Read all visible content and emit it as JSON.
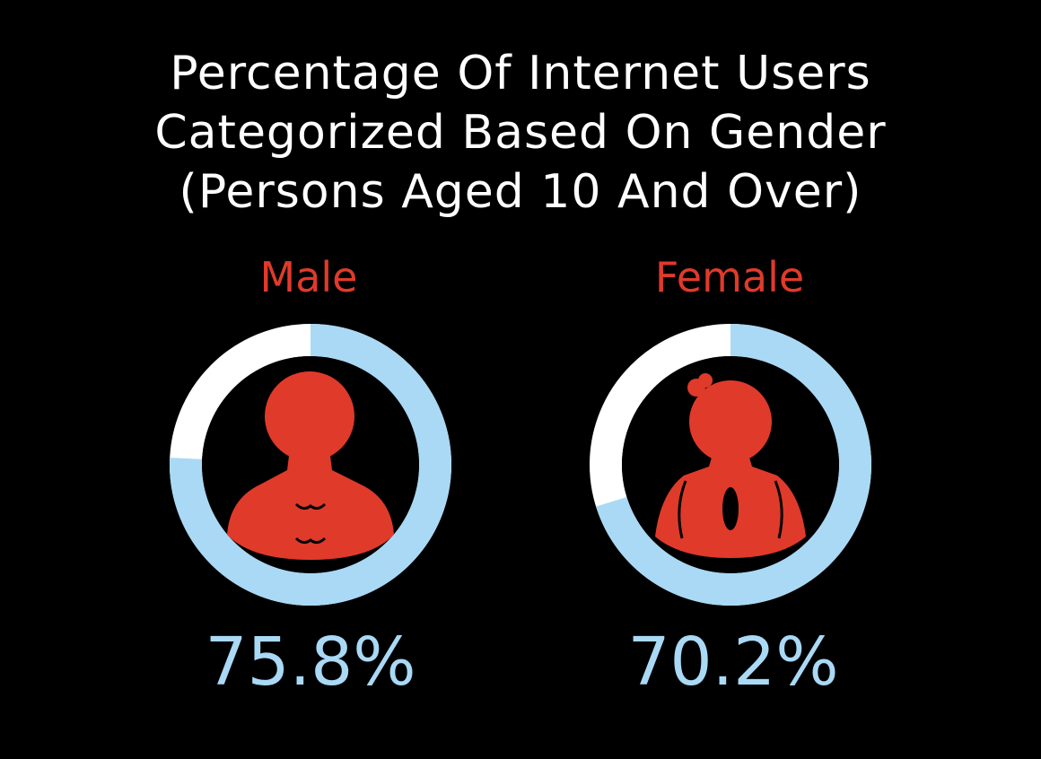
{
  "colors": {
    "background": "#000000",
    "title": "#ffffff",
    "accent_red": "#e03a2b",
    "ring_filled": "#a9d9f5",
    "ring_remainder": "#ffffff",
    "inner_circle": "#000000"
  },
  "chart_data": [
    {
      "type": "pie",
      "variant": "donut",
      "title": "Percentage Of Internet Users Categorized Based On Gender (Persons Aged 10 And Over)",
      "title_lines": [
        "Percentage Of Internet Users",
        "Categorized Based On Gender",
        "(Persons Aged 10 And Over)"
      ],
      "label": "Male",
      "value": 75.8,
      "value_label": "75.8%",
      "icon": "male-person-icon"
    },
    {
      "type": "pie",
      "variant": "donut",
      "label": "Female",
      "value": 70.2,
      "value_label": "70.2%",
      "icon": "female-person-icon"
    }
  ]
}
